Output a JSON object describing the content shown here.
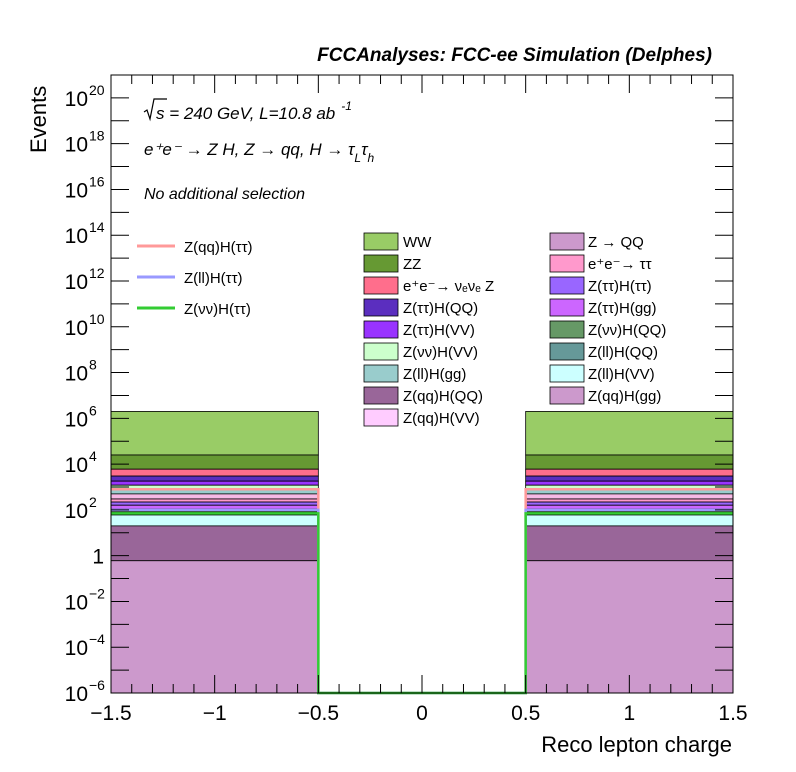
{
  "header": {
    "title": "FCCAnalyses: FCC-ee Simulation (Delphes)",
    "energy_sqrt": "s",
    "energy_rest": " = 240 GeV, L=10.8 ab",
    "lumi_exp": "-1",
    "process": "e⁺e⁻ → Z H, Z → qq, H → τ",
    "tau1_sub": "L",
    "tau2": "τ",
    "tau2_sub": "h",
    "selection": "No additional selection"
  },
  "chart_data": {
    "type": "bar",
    "xlabel": "Reco lepton charge",
    "ylabel": "Events",
    "xlim": [
      -1.5,
      1.5
    ],
    "ylim": [
      1e-06,
      1e+21
    ],
    "log_y": true,
    "xticks": [
      {
        "v": -1.5,
        "label": "−1.5"
      },
      {
        "v": -1,
        "label": "−1"
      },
      {
        "v": -0.5,
        "label": "−0.5"
      },
      {
        "v": 0,
        "label": "0"
      },
      {
        "v": 0.5,
        "label": "0.5"
      },
      {
        "v": 1,
        "label": "1"
      },
      {
        "v": 1.5,
        "label": "1.5"
      }
    ],
    "yticks": [
      {
        "v": 1e-06,
        "base": "10",
        "exp": "−6"
      },
      {
        "v": 0.0001,
        "base": "10",
        "exp": "−4"
      },
      {
        "v": 0.01,
        "base": "10",
        "exp": "−2"
      },
      {
        "v": 1,
        "base": "1",
        "exp": ""
      },
      {
        "v": 100.0,
        "base": "10",
        "exp": "2"
      },
      {
        "v": 10000.0,
        "base": "10",
        "exp": "4"
      },
      {
        "v": 1000000.0,
        "base": "10",
        "exp": "6"
      },
      {
        "v": 100000000.0,
        "base": "10",
        "exp": "8"
      },
      {
        "v": 10000000000.0,
        "base": "10",
        "exp": "10"
      },
      {
        "v": 1000000000000.0,
        "base": "10",
        "exp": "12"
      },
      {
        "v": 100000000000000.0,
        "base": "10",
        "exp": "14"
      },
      {
        "v": 1e+16,
        "base": "10",
        "exp": "16"
      },
      {
        "v": 1e+18,
        "base": "10",
        "exp": "18"
      },
      {
        "v": 1e+20,
        "base": "10",
        "exp": "20"
      }
    ],
    "bins": [
      [
        -1.5,
        -0.5
      ],
      [
        -0.5,
        0.5
      ],
      [
        0.5,
        1.5
      ]
    ],
    "stack_tops": [
      {
        "color": "#99cc66",
        "value": 2000000.0
      },
      {
        "color": "#669933",
        "value": 25000.0
      },
      {
        "color": "#ff6e8c",
        "value": 6000
      },
      {
        "color": "#5b2ebf",
        "value": 3000
      },
      {
        "color": "#9933ff",
        "value": 1800
      },
      {
        "color": "#ccffcc",
        "value": 1200
      },
      {
        "color": "#99cccc",
        "value": 800
      },
      {
        "color": "#f7b9e5",
        "value": 500
      },
      {
        "color": "#ff99cc",
        "value": 300
      },
      {
        "color": "#9966ff",
        "value": 220
      },
      {
        "color": "#cc66ff",
        "value": 160
      },
      {
        "color": "#669966",
        "value": 110
      },
      {
        "color": "#669999",
        "value": 80
      },
      {
        "color": "#ccffff",
        "value": 60
      },
      {
        "color": "#996699",
        "value": 20
      },
      {
        "color": "#cc99cc",
        "value": 0.6
      }
    ],
    "overlays": [
      {
        "name": "Z(qq)H(ττ)",
        "color": "#ff9999",
        "values": [
          800,
          1e-06,
          800
        ]
      },
      {
        "name": "Z(ll)H(ττ)",
        "color": "#9999ff",
        "values": [
          100,
          1e-06,
          100
        ]
      },
      {
        "name": "Z(νν)H(ττ)",
        "color": "#33cc33",
        "values": [
          70,
          1e-06,
          70
        ]
      }
    ],
    "legend_left": [
      {
        "label": "WW",
        "color": "#99cc66"
      },
      {
        "label": "ZZ",
        "color": "#669933"
      },
      {
        "label": "e⁺e⁻→ νₑνₑ Z",
        "color": "#ff6e8c"
      },
      {
        "label": "Z(ττ)H(QQ)",
        "color": "#5b2ebf"
      },
      {
        "label": "Z(ττ)H(VV)",
        "color": "#9933ff"
      },
      {
        "label": "Z(νν)H(VV)",
        "color": "#ccffcc"
      },
      {
        "label": "Z(ll)H(gg)",
        "color": "#99cccc"
      },
      {
        "label": "Z(qq)H(QQ)",
        "color": "#996699"
      },
      {
        "label": "Z(qq)H(VV)",
        "color": "#ffccff"
      }
    ],
    "legend_right": [
      {
        "label": "Z → QQ",
        "color": "#cc99cc"
      },
      {
        "label": "e⁺e⁻→ ττ",
        "color": "#ff99cc"
      },
      {
        "label": "Z(ττ)H(ττ)",
        "color": "#9966ff"
      },
      {
        "label": "Z(ττ)H(gg)",
        "color": "#cc66ff"
      },
      {
        "label": "Z(νν)H(QQ)",
        "color": "#669966"
      },
      {
        "label": "Z(ll)H(QQ)",
        "color": "#669999"
      },
      {
        "label": "Z(ll)H(VV)",
        "color": "#ccffff"
      },
      {
        "label": "Z(qq)H(gg)",
        "color": "#cc99cc"
      }
    ]
  }
}
